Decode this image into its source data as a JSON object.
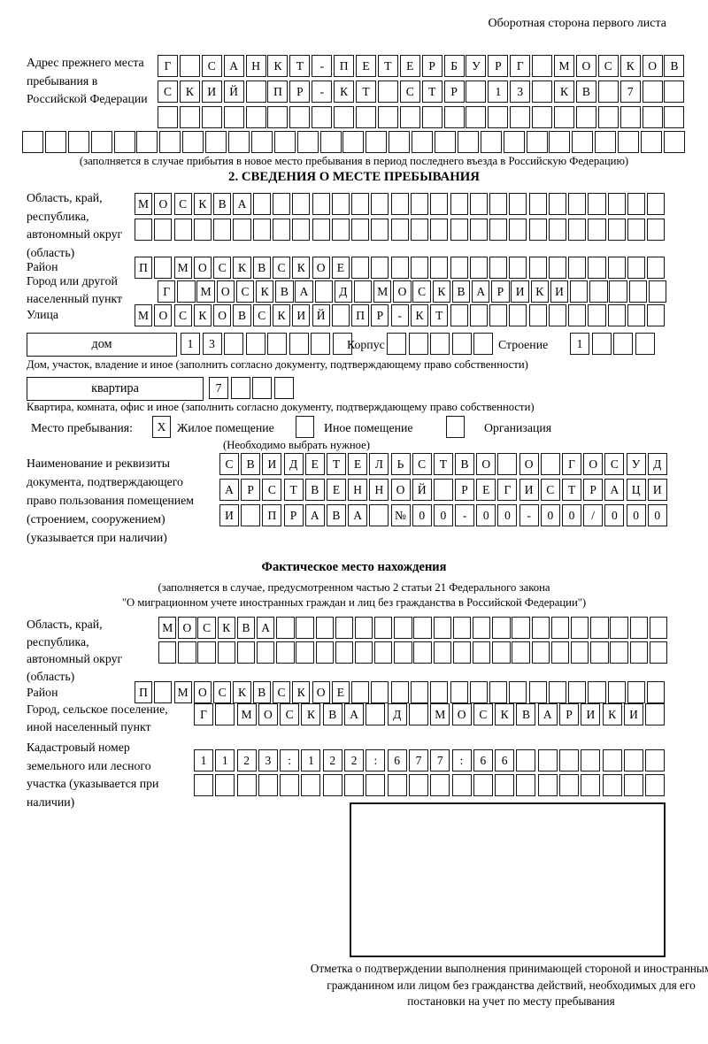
{
  "page": {
    "header_note": "Оборотная сторона первого листа"
  },
  "prev_address": {
    "label": "Адрес прежнего места пребывания в Российской Федерации",
    "row1": "Г САНКТ-ПЕТЕРБУРГ МОСКОВ",
    "row2": "СКИЙ ПР-КТ СТР 13 КВ 7  ",
    "row3": "                        ",
    "row4": "                             ",
    "note": "(заполняется в случае прибытия в новое место пребывания в период последнего въезда в Российскую Федерацию)"
  },
  "section2": {
    "title": "2. СВЕДЕНИЯ О МЕСТЕ ПРЕБЫВАНИЯ",
    "oblast_label": "Область, край, республика, автономный округ (область)",
    "oblast_row1": "МОСКВА                     ",
    "oblast_row2": "                           ",
    "raion_label": "Район",
    "raion_row": "П МОСКВСКОЕ                ",
    "gorod_label": "Город или другой населенный пункт",
    "gorod_row": "Г МОСКВА Д МОСКВАРИКИ     ",
    "ulitsa_label": "Улица",
    "ulitsa_row": "МОСКОВСКИЙ ПР-КТ           ",
    "dom_label": "дом",
    "dom_cells": "13      ",
    "korpus_label": "Корпус",
    "korpus_cells": "     ",
    "stroenie_label": "Строение",
    "stroenie_cells": "1   ",
    "dom_note": "Дом, участок, владение и иное (заполнить согласно документу, подтверждающему право собственности)",
    "kvartira_label": "квартира",
    "kvartira_cells": "7   ",
    "kvartira_note": "Квартира, комната, офис и иное (заполнить согласно документу, подтверждающему право собственности)",
    "mesto_label": "Место пребывания:",
    "mesto_options": [
      {
        "label": "Жилое помещение",
        "mark": "X"
      },
      {
        "label": "Иное помещение",
        "mark": ""
      },
      {
        "label": "Организация",
        "mark": ""
      }
    ],
    "choose_note": "(Необходимо выбрать нужное)",
    "doc_label": "Наименование и реквизиты документа, подтверждающего право пользования помещением (строением, сооружением) (указывается при наличии)",
    "doc_row1": "СВИДЕТЕЛЬСТВО О ГОСУД",
    "doc_row2": "АРСТВЕННОЙ РЕГИСТРАЦИ",
    "doc_row3": "И ПРАВА №00-00-00/000"
  },
  "actual_location": {
    "title": "Фактическое место нахождения",
    "note_line1": "(заполняется в случае, предусмотренном частью 2 статьи 21 Федерального закона",
    "note_line2": "\"О миграционном учете иностранных граждан и лиц без гражданства в Российской Федерации\")",
    "oblast_label": "Область, край, республика, автономный округ (область)",
    "oblast_row1": "МОСКВА                    ",
    "oblast_row2": "                          ",
    "raion_label": "Район",
    "raion_row": "П МОСКВСКОЕ                ",
    "gorod_label": "Город, сельское поселение, иной населенный пункт",
    "gorod_row": "Г МОСКВА Д МОСКВАРИКИ ",
    "kadastr_label": "Кадастровый номер земельного или лесного участка (указывается при наличии)",
    "kadastr_row1": "1123:122:677:66       ",
    "kadastr_row2": "                      ",
    "stamp_note": "Отметка о подтверждении выполнения принимающей стороной и иностранным гражданином или лицом без гражданства действий, необходимых для его постановки на учет по месту пребывания"
  }
}
